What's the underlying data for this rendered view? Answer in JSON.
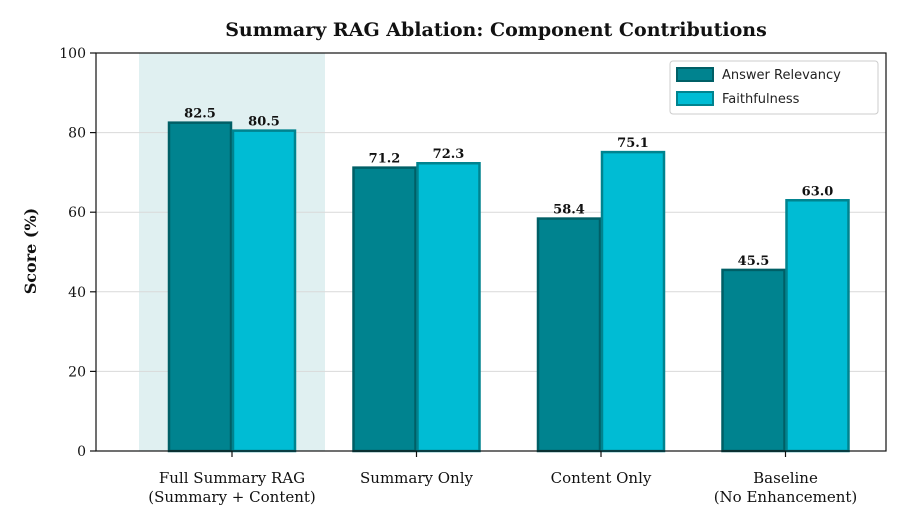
{
  "chart_data": {
    "type": "bar",
    "title": "Summary RAG Ablation: Component Contributions",
    "xlabel": "",
    "ylabel": "Score (%)",
    "ylim": [
      0,
      100
    ],
    "yticks": [
      "0",
      "20",
      "40",
      "60",
      "80",
      "100"
    ],
    "grid": "horizontal",
    "legend_position": "top-right",
    "categories": [
      [
        "Full Summary RAG",
        "(Summary + Content)"
      ],
      [
        "Summary Only"
      ],
      [
        "Content Only"
      ],
      [
        "Baseline",
        "(No Enhancement)"
      ]
    ],
    "highlighted_category_index": 0,
    "series": [
      {
        "name": "Answer Relevancy",
        "values": [
          82.5,
          71.2,
          58.4,
          45.5
        ],
        "color": "#00838f",
        "edge": "#005f66"
      },
      {
        "name": "Faithfulness",
        "values": [
          80.5,
          72.3,
          75.1,
          63.0
        ],
        "color": "#00bcd4",
        "edge": "#00838f"
      }
    ],
    "highlight_color": "#e0f0f1"
  }
}
